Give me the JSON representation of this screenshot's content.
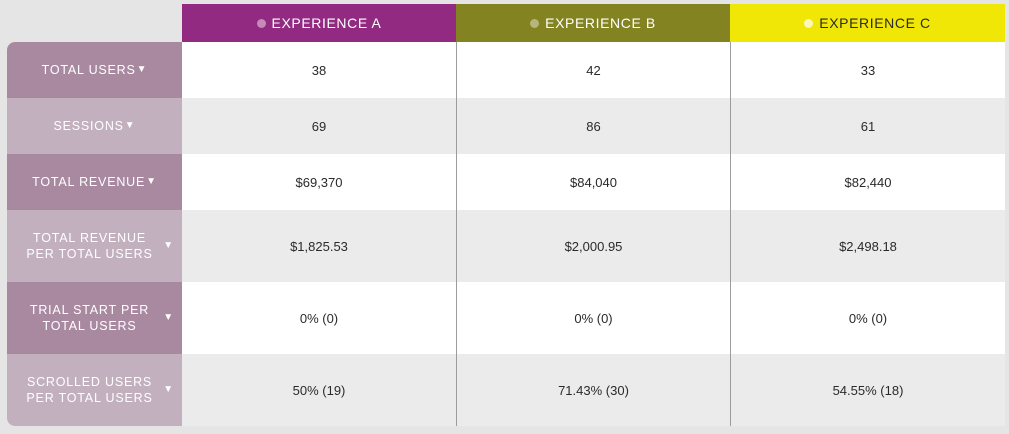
{
  "experiences": [
    {
      "label": "EXPERIENCE A",
      "color": "#922a82",
      "dot_color": "#c58ab8"
    },
    {
      "label": "EXPERIENCE B",
      "color": "#848321",
      "dot_color": "#b7b67a"
    },
    {
      "label": "EXPERIENCE C",
      "color": "#f1e706",
      "dot_color": "#fbf7b6"
    }
  ],
  "metrics": [
    {
      "label": "TOTAL USERS",
      "caret": "▼",
      "values": [
        "38",
        "42",
        "33"
      ]
    },
    {
      "label": "SESSIONS",
      "caret": "▼",
      "values": [
        "69",
        "86",
        "61"
      ]
    },
    {
      "label": "TOTAL REVENUE",
      "caret": "▼",
      "values": [
        "$69,370",
        "$84,040",
        "$82,440"
      ]
    },
    {
      "label_line1": "TOTAL REVENUE",
      "label_line2": "PER TOTAL USERS",
      "caret": "▼",
      "values": [
        "$1,825.53",
        "$2,000.95",
        "$2,498.18"
      ]
    },
    {
      "label_line1": "TRIAL START PER",
      "label_line2": "TOTAL USERS",
      "caret": "▼",
      "values": [
        "0% (0)",
        "0% (0)",
        "0% (0)"
      ]
    },
    {
      "label_line1": "SCROLLED USERS",
      "label_line2": "PER TOTAL USERS",
      "caret": "▼",
      "values": [
        "50% (19)",
        "71.43% (30)",
        "54.55% (18)"
      ]
    }
  ]
}
